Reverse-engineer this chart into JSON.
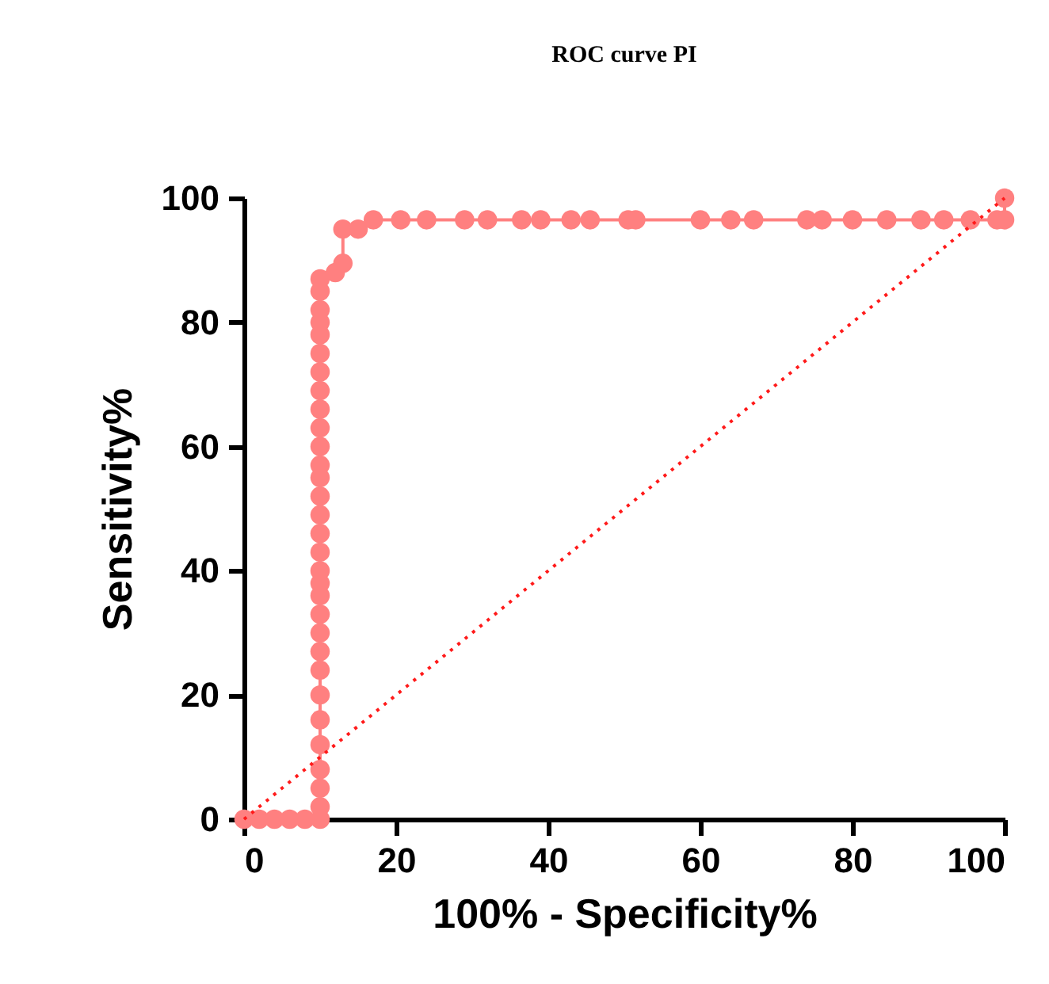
{
  "chart_data": {
    "type": "line",
    "title": "ROC curve PI",
    "xlabel": "100% - Specificity%",
    "ylabel": "Sensitivity%",
    "xlim": [
      0,
      100
    ],
    "ylim": [
      0,
      100
    ],
    "xticks": [
      0,
      20,
      40,
      60,
      80,
      100
    ],
    "yticks": [
      0,
      20,
      40,
      60,
      80,
      100
    ],
    "grid": false,
    "series": [
      {
        "color": "#ff8080",
        "marker": "circle",
        "line_style": "solid",
        "x": [
          0,
          2,
          4,
          6,
          8,
          10,
          10,
          10,
          10,
          10,
          10,
          10,
          10,
          10,
          10,
          10,
          10,
          10,
          10,
          10,
          10,
          10,
          10,
          10,
          10,
          10,
          10,
          10,
          10,
          10,
          10,
          10,
          10,
          10,
          10,
          10,
          12,
          13,
          13,
          15,
          17,
          20.6,
          24,
          29,
          32,
          36.5,
          39,
          43,
          45.5,
          50.5,
          51.5,
          60,
          64,
          67,
          74,
          76,
          80,
          84.5,
          89,
          92,
          95.5,
          99,
          100,
          100
        ],
        "values": [
          0,
          0,
          0,
          0,
          0,
          0,
          2,
          5,
          8,
          12,
          16,
          20,
          24,
          27,
          30,
          33,
          36,
          38,
          40,
          43,
          46,
          49,
          52,
          55,
          57,
          60,
          63,
          66,
          69,
          72,
          75,
          78,
          80,
          82,
          85,
          87,
          88,
          89.5,
          95,
          95,
          96.5,
          96.5,
          96.5,
          96.5,
          96.5,
          96.5,
          96.5,
          96.5,
          96.5,
          96.5,
          96.5,
          96.5,
          96.5,
          96.5,
          96.5,
          96.5,
          96.5,
          96.5,
          96.5,
          96.5,
          96.5,
          96.5,
          96.5,
          100
        ]
      },
      {
        "type": "line",
        "color": "#ff1a1a",
        "marker": "none",
        "line_style": "dotted",
        "x": [
          0,
          100
        ],
        "values": [
          0,
          100
        ]
      }
    ]
  }
}
